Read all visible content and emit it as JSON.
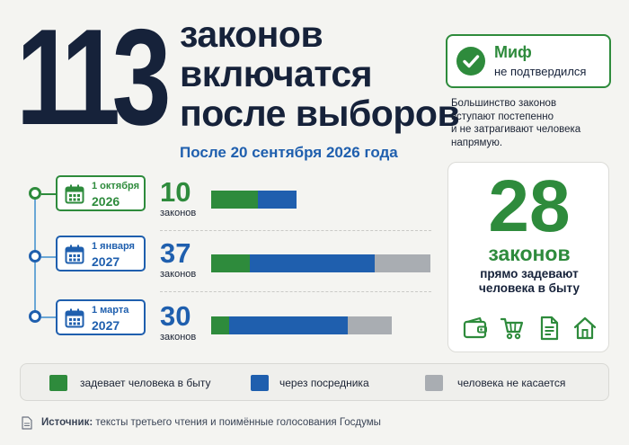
{
  "header": {
    "number": "113",
    "title_lines": [
      "законов",
      "включатся",
      "после выборов"
    ],
    "subtitle": "После 20 сентября 2026 года"
  },
  "myth": {
    "title": "Миф",
    "subtitle": "не подтвердился",
    "description_lines": [
      "Большинство законов",
      "вступают постепенно",
      "и не затрагивают человека",
      "напрямую."
    ]
  },
  "timeline": [
    {
      "date_line1": "1 октября",
      "date_line2": "2026",
      "count": "10",
      "count_label": "законов",
      "segments": {
        "direct": 52,
        "intermediary": 43,
        "none": 0
      },
      "accent": "#2e8b3c"
    },
    {
      "date_line1": "1 января",
      "date_line2": "2027",
      "count": "37",
      "count_label": "законов",
      "segments": {
        "direct": 43,
        "intermediary": 139,
        "none": 62
      },
      "accent": "#1f5fae"
    },
    {
      "date_line1": "1 марта",
      "date_line2": "2027",
      "count": "30",
      "count_label": "законов",
      "segments": {
        "direct": 20,
        "intermediary": 132,
        "none": 49
      },
      "accent": "#1f5fae"
    }
  ],
  "summary": {
    "number": "28",
    "word": "законов",
    "text_lines": [
      "прямо задевают",
      "человека в быту"
    ],
    "icons": [
      "wallet-icon",
      "shopping-cart-icon",
      "document-icon",
      "house-icon"
    ]
  },
  "legend": [
    {
      "label": "задевает человека  в быту",
      "color": "#2e8b3c"
    },
    {
      "label": "через посредника",
      "color": "#1f5fae"
    },
    {
      "label": "человека не касается",
      "color": "#a9adb2"
    }
  ],
  "source": {
    "label": "Источник:",
    "text": " тексты третьего чтения и поимённые голосования Госдумы"
  },
  "colors": {
    "green": "#2e8b3c",
    "blue": "#1f5fae",
    "gray": "#a9adb2",
    "navy": "#16223a"
  }
}
